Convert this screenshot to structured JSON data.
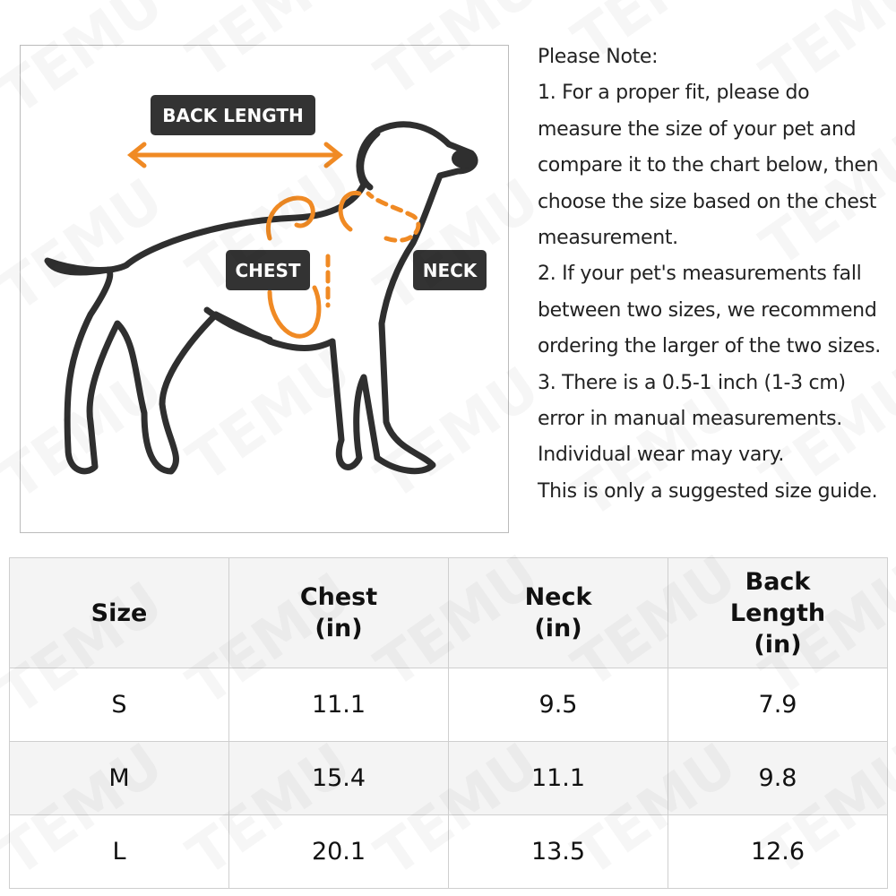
{
  "watermark": "TEMU",
  "diagram": {
    "labels": {
      "back_length": "BACK LENGTH",
      "chest": "CHEST",
      "neck": "NECK"
    }
  },
  "note": {
    "lines": [
      "Please Note:",
      "1. For a proper fit, please do",
      "measure the size of your pet and",
      "compare it to the chart below, then",
      "choose the size based on the chest",
      "measurement.",
      "2. If your pet's measurements fall",
      "between two sizes, we recommend",
      "ordering the larger of the two sizes.",
      "3. There is a 0.5-1 inch (1-3 cm)",
      "error in manual measurements.",
      "Individual wear may vary.",
      "This is only a suggested size guide."
    ]
  },
  "table": {
    "headers": [
      [
        "Size"
      ],
      [
        "Chest",
        "(in)"
      ],
      [
        "Neck",
        "(in)"
      ],
      [
        "Back",
        "Length",
        "(in)"
      ]
    ],
    "rows": [
      [
        "S",
        11.1,
        9.5,
        7.9
      ],
      [
        "M",
        15.4,
        11.1,
        9.8
      ],
      [
        "L",
        20.1,
        13.5,
        12.6
      ]
    ]
  }
}
